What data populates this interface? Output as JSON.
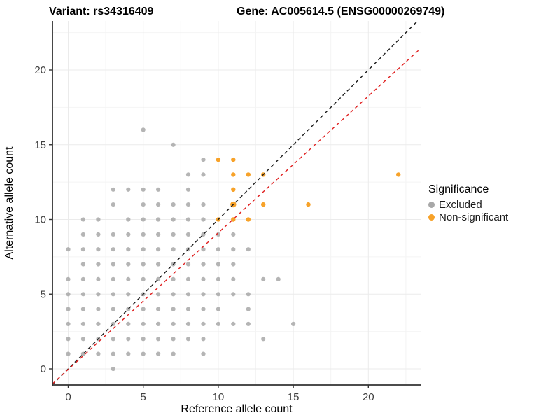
{
  "chart_data": {
    "type": "scatter",
    "title_left": "Variant: rs34316409",
    "title_right": "Gene: AC005614.5 (ENSG00000269749)",
    "xlabel": "Reference allele count",
    "ylabel": "Alternative allele count",
    "x_ticks": [
      0,
      5,
      10,
      15,
      20
    ],
    "y_ticks": [
      0,
      5,
      10,
      15,
      20
    ],
    "x_range": [
      -1.05,
      23.45
    ],
    "y_range": [
      -1.05,
      23.3
    ],
    "grid": "major-and-minor",
    "minor_grid_step": 2.5,
    "legend": {
      "title": "Significance",
      "position": "right",
      "items": [
        {
          "label": "Excluded",
          "color": "#A8A8A8"
        },
        {
          "label": "Non-significant",
          "color": "#F7A229"
        }
      ]
    },
    "series": [
      {
        "name": "Excluded",
        "color": "#A8A8A8",
        "opacity": 0.85,
        "radius": 3.1,
        "points": [
          [
            5,
            16
          ],
          [
            7,
            15
          ],
          [
            9,
            14
          ],
          [
            8,
            13
          ],
          [
            9,
            13
          ],
          [
            3,
            12
          ],
          [
            4,
            12
          ],
          [
            5,
            12
          ],
          [
            6,
            12
          ],
          [
            8,
            12
          ],
          [
            3,
            11
          ],
          [
            5,
            11
          ],
          [
            6,
            11
          ],
          [
            7,
            11
          ],
          [
            8,
            11
          ],
          [
            9,
            11
          ],
          [
            1,
            10
          ],
          [
            2,
            10
          ],
          [
            4,
            10
          ],
          [
            5,
            10
          ],
          [
            6,
            10
          ],
          [
            7,
            10
          ],
          [
            8,
            10
          ],
          [
            9,
            10
          ],
          [
            1,
            9
          ],
          [
            2,
            9
          ],
          [
            3,
            9
          ],
          [
            4,
            9
          ],
          [
            5,
            9
          ],
          [
            6,
            9
          ],
          [
            7,
            9
          ],
          [
            8,
            9
          ],
          [
            9,
            9
          ],
          [
            10,
            9
          ],
          [
            11,
            9
          ],
          [
            0,
            8
          ],
          [
            1,
            8
          ],
          [
            2,
            8
          ],
          [
            3,
            8
          ],
          [
            4,
            8
          ],
          [
            5,
            8
          ],
          [
            6,
            8
          ],
          [
            7,
            8
          ],
          [
            8,
            8
          ],
          [
            9,
            8
          ],
          [
            10,
            8
          ],
          [
            11,
            8
          ],
          [
            12,
            8
          ],
          [
            1,
            7
          ],
          [
            2,
            7
          ],
          [
            3,
            7
          ],
          [
            4,
            7
          ],
          [
            5,
            7
          ],
          [
            6,
            7
          ],
          [
            7,
            7
          ],
          [
            8,
            7
          ],
          [
            9,
            7
          ],
          [
            10,
            7
          ],
          [
            11,
            7
          ],
          [
            0,
            6
          ],
          [
            1,
            6
          ],
          [
            2,
            6
          ],
          [
            3,
            6
          ],
          [
            4,
            6
          ],
          [
            5,
            6
          ],
          [
            6,
            6
          ],
          [
            7,
            6
          ],
          [
            8,
            6
          ],
          [
            9,
            6
          ],
          [
            10,
            6
          ],
          [
            11,
            6
          ],
          [
            13,
            6
          ],
          [
            14,
            6
          ],
          [
            0,
            5
          ],
          [
            1,
            5
          ],
          [
            2,
            5
          ],
          [
            3,
            5
          ],
          [
            4,
            5
          ],
          [
            5,
            5
          ],
          [
            6,
            5
          ],
          [
            7,
            5
          ],
          [
            8,
            5
          ],
          [
            9,
            5
          ],
          [
            10,
            5
          ],
          [
            11,
            5
          ],
          [
            12,
            5
          ],
          [
            0,
            4
          ],
          [
            1,
            4
          ],
          [
            2,
            4
          ],
          [
            3,
            4
          ],
          [
            4,
            4
          ],
          [
            5,
            4
          ],
          [
            6,
            4
          ],
          [
            7,
            4
          ],
          [
            8,
            4
          ],
          [
            9,
            4
          ],
          [
            10,
            4
          ],
          [
            12,
            4
          ],
          [
            0,
            3
          ],
          [
            1,
            3
          ],
          [
            2,
            3
          ],
          [
            3,
            3
          ],
          [
            4,
            3
          ],
          [
            5,
            3
          ],
          [
            6,
            3
          ],
          [
            7,
            3
          ],
          [
            8,
            3
          ],
          [
            9,
            3
          ],
          [
            10,
            3
          ],
          [
            11,
            3
          ],
          [
            12,
            3
          ],
          [
            15,
            3
          ],
          [
            0,
            2
          ],
          [
            1,
            2
          ],
          [
            2,
            2
          ],
          [
            3,
            2
          ],
          [
            4,
            2
          ],
          [
            5,
            2
          ],
          [
            6,
            2
          ],
          [
            7,
            2
          ],
          [
            8,
            2
          ],
          [
            9,
            2
          ],
          [
            13,
            2
          ],
          [
            0,
            1
          ],
          [
            1,
            1
          ],
          [
            2,
            1
          ],
          [
            3,
            1
          ],
          [
            4,
            1
          ],
          [
            5,
            1
          ],
          [
            6,
            1
          ],
          [
            7,
            1
          ],
          [
            9,
            1
          ],
          [
            3,
            0
          ]
        ]
      },
      {
        "name": "Non-significant",
        "color": "#F7A229",
        "opacity": 1,
        "radius": 3.2,
        "points": [
          [
            10,
            14
          ],
          [
            11,
            14
          ],
          [
            11,
            13
          ],
          [
            12,
            13
          ],
          [
            13,
            13
          ],
          [
            22,
            13
          ],
          [
            11,
            12
          ],
          [
            11,
            11,
            4.2
          ],
          [
            13,
            11
          ],
          [
            16,
            11
          ],
          [
            10,
            10
          ],
          [
            11,
            10
          ],
          [
            12,
            10
          ]
        ]
      }
    ],
    "lines": [
      {
        "name": "identity-line",
        "color": "#1a1a1a",
        "dashed": true,
        "from": [
          -1.05,
          -1.05
        ],
        "to": [
          23.45,
          23.45
        ]
      },
      {
        "name": "fitted-line",
        "color": "#E02020",
        "dashed": true,
        "from": [
          -1.05,
          -1.0
        ],
        "to": [
          23.34,
          21.31
        ]
      }
    ],
    "axis": {
      "line_color": "#333333",
      "tick_label_color": "#404040",
      "major_grid_color": "#ebebeb",
      "minor_grid_color": "#f4f4f4"
    }
  }
}
